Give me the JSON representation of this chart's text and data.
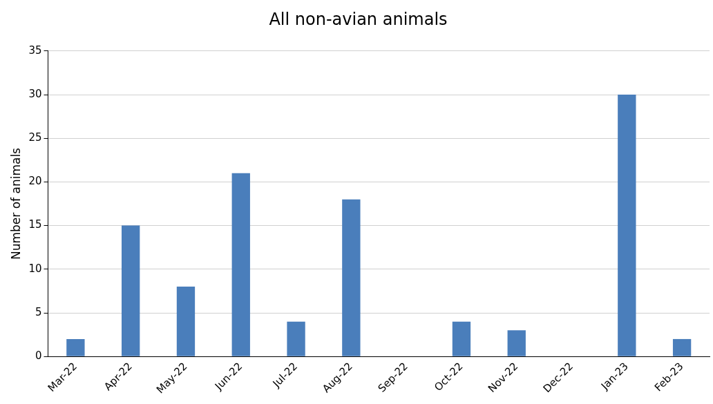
{
  "chart_data": {
    "type": "bar",
    "title": "All non-avian animals",
    "ylabel": "Number of animals",
    "categories": [
      "Mar-22",
      "Apr-22",
      "May-22",
      "Jun-22",
      "Jul-22",
      "Aug-22",
      "Sep-22",
      "Oct-22",
      "Nov-22",
      "Dec-22",
      "Jan-23",
      "Feb-23"
    ],
    "values": [
      2,
      15,
      8,
      21,
      4,
      18,
      0,
      4,
      3,
      0,
      30,
      2
    ],
    "color": "#4a7ebb",
    "ylim": [
      0,
      35
    ],
    "yticks": [
      0,
      5,
      10,
      15,
      20,
      25,
      30,
      35
    ],
    "grid": "y",
    "legend": false
  }
}
